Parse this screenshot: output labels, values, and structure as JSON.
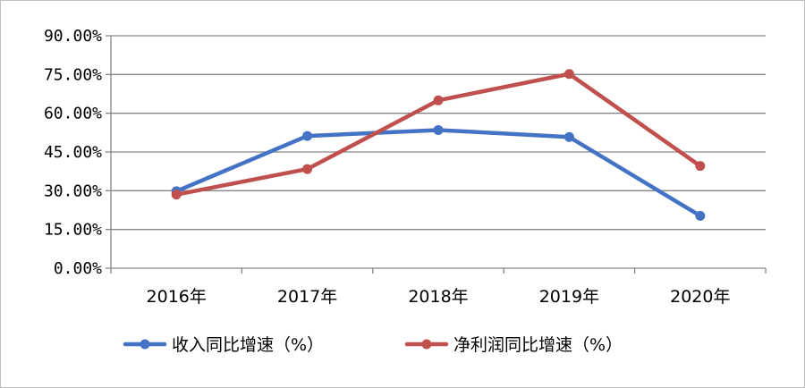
{
  "chart_data": {
    "type": "line",
    "categories": [
      "2016年",
      "2017年",
      "2018年",
      "2019年",
      "2020年"
    ],
    "series": [
      {
        "name": "收入同比增速（%）",
        "color": "#4472C4",
        "values": [
          29.8,
          51.2,
          53.5,
          50.8,
          20.3
        ]
      },
      {
        "name": "净利润同比增速（%）",
        "color": "#C0504D",
        "values": [
          28.5,
          38.4,
          65.0,
          75.2,
          39.6
        ]
      }
    ],
    "yticks": [
      "0.00%",
      "15.00%",
      "30.00%",
      "45.00%",
      "60.00%",
      "75.00%",
      "90.00%"
    ],
    "ylim": [
      0,
      90
    ],
    "grid": true,
    "legend": "bottom"
  }
}
